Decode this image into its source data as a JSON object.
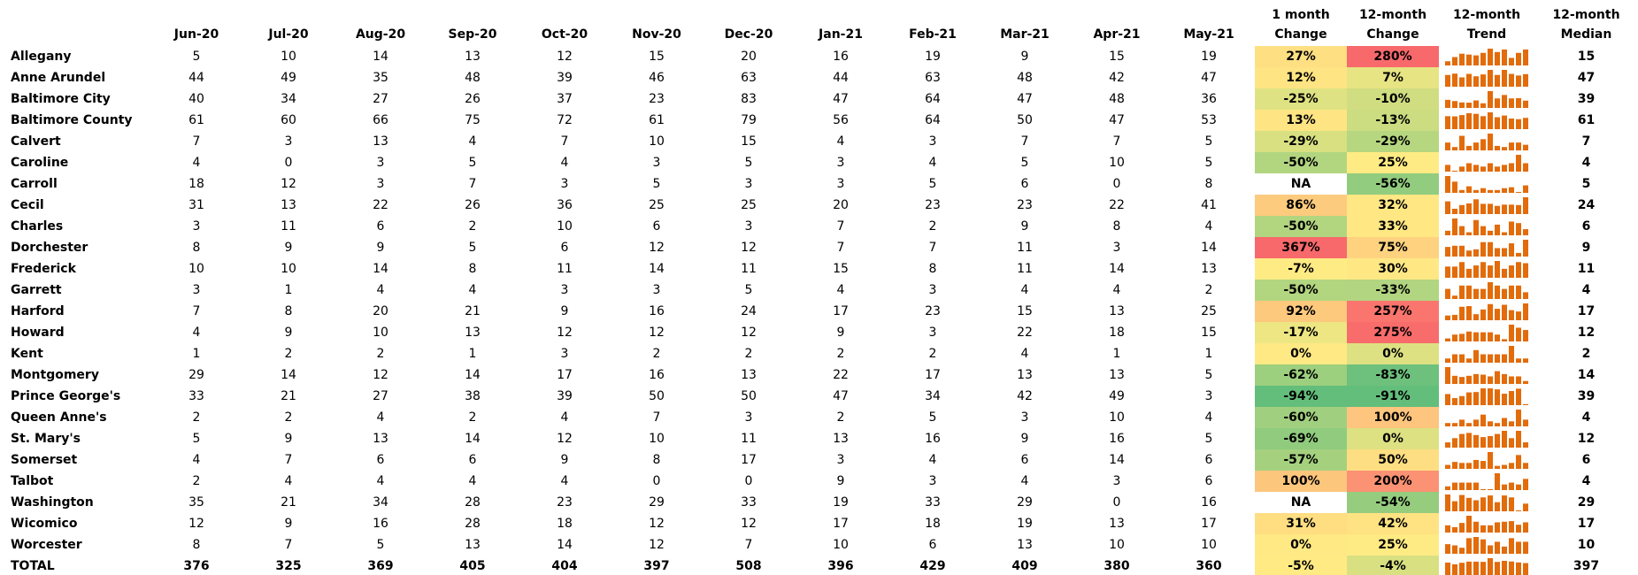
{
  "table": {
    "months": [
      "Jun-20",
      "Jul-20",
      "Aug-20",
      "Sep-20",
      "Oct-20",
      "Nov-20",
      "Dec-20",
      "Jan-21",
      "Feb-21",
      "Mar-21",
      "Apr-21",
      "May-21"
    ],
    "extra_headers": [
      "1 month\nChange",
      "12-month\nChange",
      "12-month\nTrend",
      "12-month\nMedian"
    ],
    "rows": [
      {
        "name": "Allegany",
        "values": [
          5,
          10,
          14,
          13,
          12,
          15,
          20,
          16,
          19,
          9,
          15,
          19
        ],
        "change_1m": "27%",
        "change_12m": "280%",
        "median": 15
      },
      {
        "name": "Anne Arundel",
        "values": [
          44,
          49,
          35,
          48,
          39,
          46,
          63,
          44,
          63,
          48,
          42,
          47
        ],
        "change_1m": "12%",
        "change_12m": "7%",
        "median": 47
      },
      {
        "name": "Baltimore City",
        "values": [
          40,
          34,
          27,
          26,
          37,
          23,
          83,
          47,
          64,
          47,
          48,
          36
        ],
        "change_1m": "-25%",
        "change_12m": "-10%",
        "median": 39
      },
      {
        "name": "Baltimore County",
        "values": [
          61,
          60,
          66,
          75,
          72,
          61,
          79,
          56,
          64,
          50,
          47,
          53
        ],
        "change_1m": "13%",
        "change_12m": "-13%",
        "median": 61
      },
      {
        "name": "Calvert",
        "values": [
          7,
          3,
          13,
          4,
          7,
          10,
          15,
          4,
          3,
          7,
          7,
          5
        ],
        "change_1m": "-29%",
        "change_12m": "-29%",
        "median": 7
      },
      {
        "name": "Caroline",
        "values": [
          4,
          0,
          3,
          5,
          4,
          3,
          5,
          3,
          4,
          5,
          10,
          5
        ],
        "change_1m": "-50%",
        "change_12m": "25%",
        "median": 4
      },
      {
        "name": "Carroll",
        "values": [
          18,
          12,
          3,
          7,
          3,
          5,
          3,
          3,
          5,
          6,
          0,
          8
        ],
        "change_1m": "NA",
        "change_12m": "-56%",
        "median": 5
      },
      {
        "name": "Cecil",
        "values": [
          31,
          13,
          22,
          26,
          36,
          25,
          25,
          20,
          23,
          23,
          22,
          41
        ],
        "change_1m": "86%",
        "change_12m": "32%",
        "median": 24
      },
      {
        "name": "Charles",
        "values": [
          3,
          11,
          6,
          2,
          10,
          6,
          3,
          7,
          2,
          9,
          8,
          4
        ],
        "change_1m": "-50%",
        "change_12m": "33%",
        "median": 6
      },
      {
        "name": "Dorchester",
        "values": [
          8,
          9,
          9,
          5,
          6,
          12,
          12,
          7,
          7,
          11,
          3,
          14
        ],
        "change_1m": "367%",
        "change_12m": "75%",
        "median": 9
      },
      {
        "name": "Frederick",
        "values": [
          10,
          10,
          14,
          8,
          11,
          14,
          11,
          15,
          8,
          11,
          14,
          13
        ],
        "change_1m": "-7%",
        "change_12m": "30%",
        "median": 11
      },
      {
        "name": "Garrett",
        "values": [
          3,
          1,
          4,
          4,
          3,
          3,
          5,
          4,
          3,
          4,
          4,
          2
        ],
        "change_1m": "-50%",
        "change_12m": "-33%",
        "median": 4
      },
      {
        "name": "Harford",
        "values": [
          7,
          8,
          20,
          21,
          9,
          16,
          24,
          17,
          23,
          15,
          13,
          25
        ],
        "change_1m": "92%",
        "change_12m": "257%",
        "median": 17
      },
      {
        "name": "Howard",
        "values": [
          4,
          9,
          10,
          13,
          12,
          12,
          12,
          9,
          3,
          22,
          18,
          15
        ],
        "change_1m": "-17%",
        "change_12m": "275%",
        "median": 12
      },
      {
        "name": "Kent",
        "values": [
          1,
          2,
          2,
          1,
          3,
          2,
          2,
          2,
          2,
          4,
          1,
          1
        ],
        "change_1m": "0%",
        "change_12m": "0%",
        "median": 2
      },
      {
        "name": "Montgomery",
        "values": [
          29,
          14,
          12,
          14,
          17,
          16,
          13,
          22,
          17,
          13,
          13,
          5
        ],
        "change_1m": "-62%",
        "change_12m": "-83%",
        "median": 14
      },
      {
        "name": "Prince George's",
        "values": [
          33,
          21,
          27,
          38,
          39,
          50,
          50,
          47,
          34,
          42,
          49,
          3
        ],
        "change_1m": "-94%",
        "change_12m": "-91%",
        "median": 39
      },
      {
        "name": "Queen Anne's",
        "values": [
          2,
          2,
          4,
          2,
          4,
          7,
          3,
          2,
          5,
          3,
          10,
          4
        ],
        "change_1m": "-60%",
        "change_12m": "100%",
        "median": 4
      },
      {
        "name": "St. Mary's",
        "values": [
          5,
          9,
          13,
          14,
          12,
          10,
          11,
          13,
          16,
          9,
          16,
          5
        ],
        "change_1m": "-69%",
        "change_12m": "0%",
        "median": 12
      },
      {
        "name": "Somerset",
        "values": [
          4,
          7,
          6,
          6,
          9,
          8,
          17,
          3,
          4,
          6,
          14,
          6
        ],
        "change_1m": "-57%",
        "change_12m": "50%",
        "median": 6
      },
      {
        "name": "Talbot",
        "values": [
          2,
          4,
          4,
          4,
          4,
          0,
          0,
          9,
          3,
          4,
          3,
          6
        ],
        "change_1m": "100%",
        "change_12m": "200%",
        "median": 4
      },
      {
        "name": "Washington",
        "values": [
          35,
          21,
          34,
          28,
          23,
          29,
          33,
          19,
          33,
          29,
          0,
          16
        ],
        "change_1m": "NA",
        "change_12m": "-54%",
        "median": 29
      },
      {
        "name": "Wicomico",
        "values": [
          12,
          9,
          16,
          28,
          18,
          12,
          12,
          17,
          18,
          19,
          13,
          17
        ],
        "change_1m": "31%",
        "change_12m": "42%",
        "median": 17
      },
      {
        "name": "Worcester",
        "values": [
          8,
          7,
          5,
          13,
          14,
          12,
          7,
          10,
          6,
          13,
          10,
          10
        ],
        "change_1m": "0%",
        "change_12m": "25%",
        "median": 10
      },
      {
        "name": "TOTAL",
        "values": [
          376,
          325,
          369,
          405,
          404,
          397,
          508,
          396,
          429,
          409,
          380,
          360
        ],
        "change_1m": "-5%",
        "change_12m": "-4%",
        "median": 397
      }
    ]
  }
}
